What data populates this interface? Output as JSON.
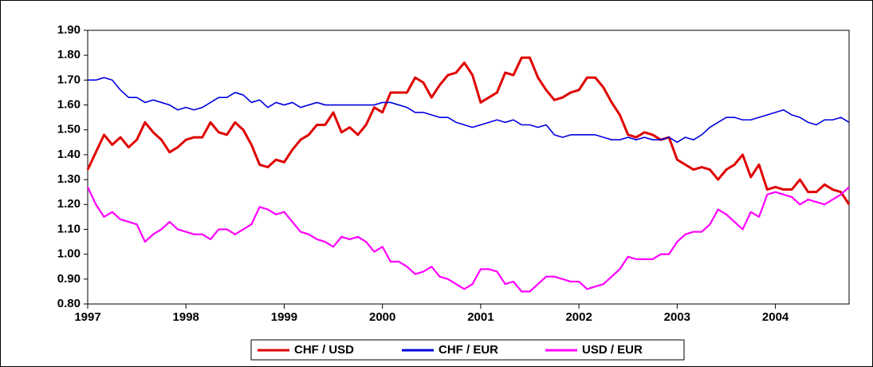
{
  "chart_data": {
    "type": "line",
    "categories": [
      "1997",
      null,
      null,
      null,
      null,
      null,
      null,
      null,
      null,
      null,
      null,
      null,
      "1998",
      null,
      null,
      null,
      null,
      null,
      null,
      null,
      null,
      null,
      null,
      null,
      "1999",
      null,
      null,
      null,
      null,
      null,
      null,
      null,
      null,
      null,
      null,
      null,
      "2000",
      null,
      null,
      null,
      null,
      null,
      null,
      null,
      null,
      null,
      null,
      null,
      "2001",
      null,
      null,
      null,
      null,
      null,
      null,
      null,
      null,
      null,
      null,
      null,
      "2002",
      null,
      null,
      null,
      null,
      null,
      null,
      null,
      null,
      null,
      null,
      null,
      "2003",
      null,
      null,
      null,
      null,
      null,
      null,
      null,
      null,
      null,
      null,
      null,
      "2004",
      null,
      null,
      null,
      null,
      null,
      null,
      null,
      null,
      null
    ],
    "series": [
      {
        "name": "CHF / USD",
        "color": "#e00000",
        "width": 3,
        "values": [
          1.34,
          1.41,
          1.48,
          1.44,
          1.47,
          1.43,
          1.46,
          1.53,
          1.49,
          1.46,
          1.41,
          1.43,
          1.46,
          1.47,
          1.47,
          1.53,
          1.49,
          1.48,
          1.53,
          1.5,
          1.44,
          1.36,
          1.35,
          1.38,
          1.37,
          1.42,
          1.46,
          1.48,
          1.52,
          1.52,
          1.57,
          1.49,
          1.51,
          1.48,
          1.52,
          1.59,
          1.57,
          1.65,
          1.65,
          1.65,
          1.71,
          1.69,
          1.63,
          1.68,
          1.72,
          1.73,
          1.77,
          1.72,
          1.61,
          1.63,
          1.65,
          1.73,
          1.72,
          1.79,
          1.79,
          1.71,
          1.66,
          1.62,
          1.63,
          1.65,
          1.66,
          1.71,
          1.71,
          1.67,
          1.61,
          1.56,
          1.48,
          1.47,
          1.49,
          1.48,
          1.46,
          1.47,
          1.38,
          1.36,
          1.34,
          1.35,
          1.34,
          1.3,
          1.34,
          1.36,
          1.4,
          1.31,
          1.36,
          1.26,
          1.27,
          1.26,
          1.26,
          1.3,
          1.25,
          1.25,
          1.28,
          1.26,
          1.25,
          1.2
        ]
      },
      {
        "name": "CHF / EUR",
        "color": "#0000e0",
        "width": 1.6,
        "values": [
          1.7,
          1.7,
          1.71,
          1.7,
          1.66,
          1.63,
          1.63,
          1.61,
          1.62,
          1.61,
          1.6,
          1.58,
          1.59,
          1.58,
          1.59,
          1.61,
          1.63,
          1.63,
          1.65,
          1.64,
          1.61,
          1.62,
          1.59,
          1.61,
          1.6,
          1.61,
          1.59,
          1.6,
          1.61,
          1.6,
          1.6,
          1.6,
          1.6,
          1.6,
          1.6,
          1.6,
          1.61,
          1.61,
          1.6,
          1.59,
          1.57,
          1.57,
          1.56,
          1.55,
          1.55,
          1.53,
          1.52,
          1.51,
          1.52,
          1.53,
          1.54,
          1.53,
          1.54,
          1.52,
          1.52,
          1.51,
          1.52,
          1.48,
          1.47,
          1.48,
          1.48,
          1.48,
          1.48,
          1.47,
          1.46,
          1.46,
          1.47,
          1.46,
          1.47,
          1.46,
          1.46,
          1.47,
          1.45,
          1.47,
          1.46,
          1.48,
          1.51,
          1.53,
          1.55,
          1.55,
          1.54,
          1.54,
          1.55,
          1.56,
          1.57,
          1.58,
          1.56,
          1.55,
          1.53,
          1.52,
          1.54,
          1.54,
          1.55,
          1.53
        ]
      },
      {
        "name": "USD / EUR",
        "color": "#ff00ff",
        "width": 2.2,
        "values": [
          1.27,
          1.2,
          1.15,
          1.17,
          1.14,
          1.13,
          1.12,
          1.05,
          1.08,
          1.1,
          1.13,
          1.1,
          1.09,
          1.08,
          1.08,
          1.06,
          1.1,
          1.1,
          1.08,
          1.1,
          1.12,
          1.19,
          1.18,
          1.16,
          1.17,
          1.13,
          1.09,
          1.08,
          1.06,
          1.05,
          1.03,
          1.07,
          1.06,
          1.07,
          1.05,
          1.01,
          1.03,
          0.97,
          0.97,
          0.95,
          0.92,
          0.93,
          0.95,
          0.91,
          0.9,
          0.88,
          0.86,
          0.88,
          0.94,
          0.94,
          0.93,
          0.88,
          0.89,
          0.85,
          0.85,
          0.88,
          0.91,
          0.91,
          0.9,
          0.89,
          0.89,
          0.86,
          0.87,
          0.88,
          0.91,
          0.94,
          0.99,
          0.98,
          0.98,
          0.98,
          1.0,
          1.0,
          1.05,
          1.08,
          1.09,
          1.09,
          1.12,
          1.18,
          1.16,
          1.13,
          1.1,
          1.17,
          1.15,
          1.24,
          1.25,
          1.24,
          1.23,
          1.2,
          1.22,
          1.21,
          1.2,
          1.22,
          1.24,
          1.27
        ]
      }
    ],
    "ylim": [
      0.8,
      1.9
    ],
    "yticks": [
      {
        "value": 0.8,
        "label": "0.80"
      },
      {
        "value": 0.9,
        "label": "0.90"
      },
      {
        "value": 1.0,
        "label": "1.00"
      },
      {
        "value": 1.1,
        "label": "1.10"
      },
      {
        "value": 1.2,
        "label": "1.20"
      },
      {
        "value": 1.3,
        "label": "1.30"
      },
      {
        "value": 1.4,
        "label": "1.40"
      },
      {
        "value": 1.5,
        "label": "1.50"
      },
      {
        "value": 1.6,
        "label": "1.60"
      },
      {
        "value": 1.7,
        "label": "1.70"
      },
      {
        "value": 1.8,
        "label": "1.80"
      },
      {
        "value": 1.9,
        "label": "1.90"
      }
    ],
    "grid": false,
    "legend": "bottom"
  }
}
